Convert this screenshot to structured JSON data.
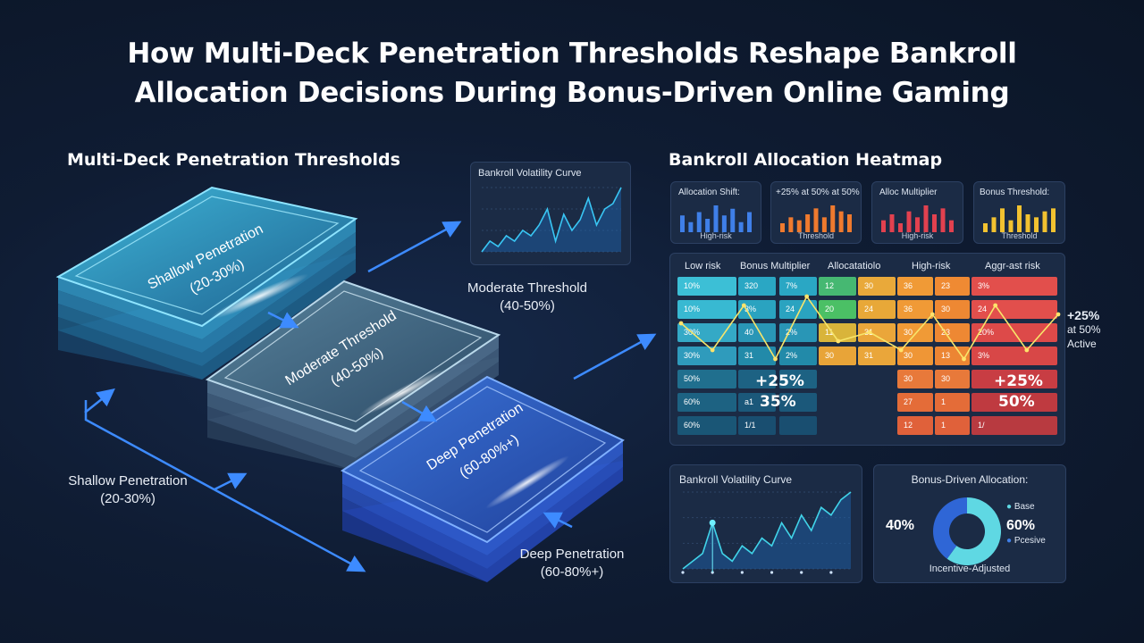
{
  "title_line1": "How Multi-Deck Penetration Thresholds Reshape Bankroll",
  "title_line2": "Allocation Decisions During Bonus-Driven Online Gaming",
  "left": {
    "heading": "Multi-Deck Penetration Thresholds",
    "layers": [
      {
        "line1": "Shallow Penetration",
        "line2": "(20-30%)"
      },
      {
        "line1": "Moderate Threshold",
        "line2": "(40-50%)"
      },
      {
        "line1": "Deep Penetration",
        "line2": "(60-80%+)"
      }
    ],
    "callouts": {
      "moderate": {
        "line1": "Moderate Threshold",
        "line2": "(40-50%)"
      },
      "shallow": {
        "line1": "Shallow Penetration",
        "line2": "(20-30%)"
      },
      "deep": {
        "line1": "Deep Penetration",
        "line2": "(60-80%+)"
      }
    },
    "inset_chart": {
      "title": "Bankroll Volatility Curve",
      "values": [
        2,
        4,
        3,
        5,
        4,
        6,
        5,
        7,
        10,
        4,
        9,
        6,
        8,
        12,
        7,
        10,
        11,
        14
      ]
    }
  },
  "heatmap": {
    "heading": "Bankroll Allocation Heatmap",
    "mini_charts": [
      {
        "title": "Allocation Shift:",
        "sub": "High-risk",
        "color": "#3f7fe8",
        "values": [
          5,
          3,
          6,
          4,
          8,
          5,
          7,
          3,
          6
        ]
      },
      {
        "title": "+25% at 50% at 50%",
        "sub": "Threshold",
        "color": "#ef7a2e",
        "values": [
          3,
          5,
          4,
          6,
          8,
          5,
          9,
          7,
          6
        ]
      },
      {
        "title": "Alloc Multiplier",
        "sub": "High-risk",
        "color": "#e2414f",
        "values": [
          4,
          6,
          3,
          7,
          5,
          9,
          6,
          8,
          4
        ]
      },
      {
        "title": "Bonus Threshold:",
        "sub": "Threshold",
        "color": "#f2c230",
        "values": [
          3,
          5,
          8,
          4,
          9,
          6,
          5,
          7,
          8
        ]
      }
    ],
    "columns": [
      "Low risk",
      "Bonus Multiplier",
      "Allocatatiolo",
      "High-risk",
      "Aggr-ast risk"
    ],
    "rows": [
      [
        "10%",
        "320",
        "7%",
        "12",
        "30",
        "36",
        "23",
        "3%"
      ],
      [
        "10%",
        "3%",
        "24",
        "20",
        "24",
        "36",
        "30",
        "24"
      ],
      [
        "30%",
        "40",
        "2%",
        "11",
        "31",
        "30",
        "23",
        "20%"
      ],
      [
        "30%",
        "31",
        "2%",
        "30",
        "31",
        "30",
        "13",
        "3%"
      ],
      [
        "50%",
        "",
        "",
        "",
        "",
        "30",
        "30",
        ""
      ],
      [
        "60%",
        "a1",
        "",
        "",
        "",
        "27",
        "1",
        ""
      ],
      [
        "60%",
        "1/1",
        "",
        "",
        "",
        "12",
        "1",
        "1/"
      ]
    ],
    "overlay": {
      "left_top": "+25%",
      "left_bottom": "35%",
      "right_top": "+25%",
      "right_bottom": "50%"
    },
    "side_note": {
      "big": "+25%",
      "line2": "at 50%",
      "line3": "Active"
    },
    "trend_values": [
      6,
      3,
      8,
      2,
      9,
      4,
      5,
      3,
      7,
      2,
      8,
      3,
      7
    ]
  },
  "volatility": {
    "title": "Bankroll Volatility Curve",
    "values": [
      1,
      2,
      3,
      7,
      3,
      2,
      4,
      3,
      5,
      4,
      7,
      5,
      8,
      6,
      9,
      8,
      10,
      11
    ]
  },
  "donut": {
    "title": "Bonus-Driven Allocation:",
    "left_pct": "40%",
    "right_pct": "60%",
    "legend": [
      "Base",
      "Pcesive"
    ],
    "bottom": "Incentive-Adjusted",
    "slices": [
      {
        "label": "Base",
        "value": 60,
        "color": "#5fd8e3"
      },
      {
        "label": "Pcesive",
        "value": 40,
        "color": "#2f66d6"
      }
    ]
  }
}
